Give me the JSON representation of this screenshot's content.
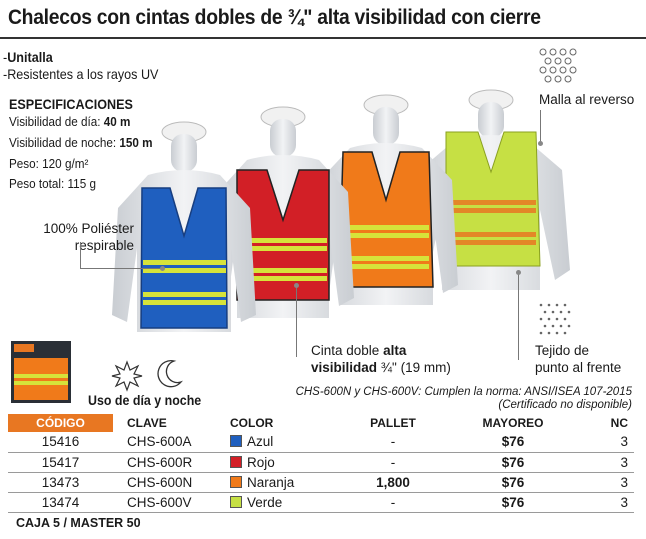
{
  "header": {
    "title": "Chalecos con cintas dobles de ¾\" alta visibilidad con cierre"
  },
  "features": [
    {
      "dash": "-",
      "text": "Unitalla",
      "bold": true
    },
    {
      "dash": "-",
      "text": "Resistentes a los rayos UV",
      "bold": false
    }
  ],
  "specs": {
    "title": "ESPECIFICACIONES",
    "items": [
      {
        "label": "Visibilidad de día: ",
        "value": "40 m"
      },
      {
        "label": "Visibilidad de noche: ",
        "value": "150 m"
      },
      {
        "label": "Peso: ",
        "value": "120 g/m²"
      },
      {
        "label": "Peso total: ",
        "value": "115 g"
      }
    ]
  },
  "callouts": {
    "material_line1": "100% Poliéster",
    "material_line2": "respirable",
    "mesh": "Malla al reverso",
    "tape_prefix": "Cinta doble ",
    "tape_bold1": "alta",
    "tape_bold2": "visibilidad",
    "tape_suffix": " ¾\" (19 mm)",
    "knit_line1": "Tejido de",
    "knit_line2": "punto al frente"
  },
  "day_night": "Uso de día y noche",
  "norm": {
    "line1": "CHS-600N y CHS-600V: Cumplen la norma: ANSI/ISEA 107-2015",
    "line2": "(Certificado no disponible)"
  },
  "table": {
    "headers": [
      "CÓDIGO",
      "CLAVE",
      "COLOR",
      "PALLET",
      "MAYOREO",
      "NC"
    ],
    "rows": [
      {
        "codigo": "15416",
        "clave": "CHS-600A",
        "color": "Azul",
        "swatch": "#1f5fbf",
        "pallet": "-",
        "mayoreo": "$76",
        "nc": "3"
      },
      {
        "codigo": "15417",
        "clave": "CHS-600R",
        "color": "Rojo",
        "swatch": "#d21f26",
        "pallet": "-",
        "mayoreo": "$76",
        "nc": "3"
      },
      {
        "codigo": "13473",
        "clave": "CHS-600N",
        "color": "Naranja",
        "swatch": "#f07a1a",
        "pallet": "1,800",
        "mayoreo": "$76",
        "nc": "3"
      },
      {
        "codigo": "13474",
        "clave": "CHS-600V",
        "color": "Verde",
        "swatch": "#c6e044",
        "pallet": "-",
        "mayoreo": "$76",
        "nc": "3"
      }
    ]
  },
  "footer": "CAJA 5 / MASTER 50",
  "colors": {
    "accent": "#e87722",
    "blue_vest": "#1f5fbf",
    "red_vest": "#d21f26",
    "orange_vest": "#f07a1a",
    "green_vest": "#c6e044",
    "tape": "#d6e33a"
  }
}
